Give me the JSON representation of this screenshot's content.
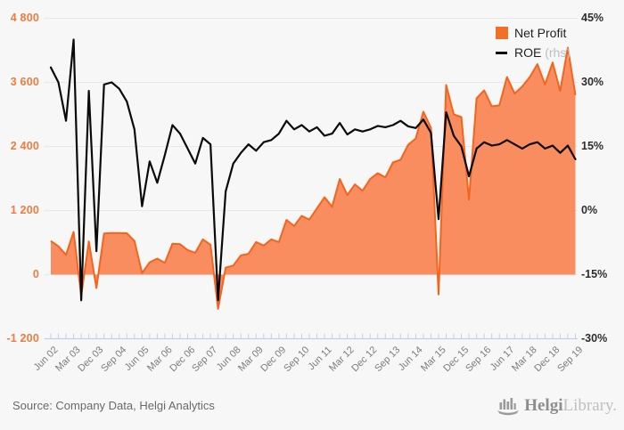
{
  "chart_data": {
    "type": "area",
    "title": "",
    "categories": [
      "Jun 02",
      "Sep 02",
      "Dec 02",
      "Mar 03",
      "Jun 03",
      "Sep 03",
      "Dec 03",
      "Mar 04",
      "Jun 04",
      "Sep 04",
      "Dec 04",
      "Mar 05",
      "Jun 05",
      "Sep 05",
      "Dec 05",
      "Mar 06",
      "Jun 06",
      "Sep 06",
      "Dec 06",
      "Mar 07",
      "Jun 07",
      "Sep 07",
      "Dec 07",
      "Mar 08",
      "Jun 08",
      "Sep 08",
      "Dec 08",
      "Mar 09",
      "Jun 09",
      "Sep 09",
      "Dec 09",
      "Mar 10",
      "Jun 10",
      "Sep 10",
      "Dec 10",
      "Mar 11",
      "Jun 11",
      "Sep 11",
      "Dec 11",
      "Mar 12",
      "Jun 12",
      "Sep 12",
      "Dec 12",
      "Mar 13",
      "Jun 13",
      "Sep 13",
      "Dec 13",
      "Mar 14",
      "Jun 14",
      "Sep 14",
      "Dec 14",
      "Mar 15",
      "Jun 15",
      "Sep 15",
      "Dec 15",
      "Mar 16",
      "Jun 16",
      "Sep 16",
      "Dec 16",
      "Mar 17",
      "Jun 17",
      "Sep 17",
      "Dec 17",
      "Mar 18",
      "Jun 18",
      "Sep 18",
      "Dec 18",
      "Mar 19",
      "Jun 19",
      "Sep 19"
    ],
    "x_label_every": 3,
    "series": [
      {
        "name": "Net Profit",
        "type": "area",
        "axis": "left",
        "values": [
          630,
          530,
          370,
          800,
          -400,
          620,
          -250,
          770,
          780,
          780,
          775,
          630,
          30,
          230,
          300,
          220,
          580,
          570,
          460,
          410,
          660,
          560,
          -640,
          130,
          170,
          360,
          390,
          610,
          545,
          660,
          610,
          1025,
          910,
          1100,
          1030,
          1240,
          1450,
          1270,
          1790,
          1490,
          1690,
          1570,
          1790,
          1900,
          1820,
          2100,
          2150,
          2430,
          2550,
          3050,
          2750,
          -370,
          3550,
          3000,
          2950,
          1400,
          3300,
          3450,
          3150,
          3170,
          3700,
          3390,
          3520,
          3700,
          3940,
          3560,
          3970,
          3440,
          4250,
          3360
        ]
      },
      {
        "name": "ROE",
        "type": "line",
        "axis": "right",
        "values": [
          33.5,
          30,
          21,
          40,
          -21,
          28,
          -9.5,
          29.5,
          30,
          28.5,
          25.5,
          19,
          1,
          11.5,
          6.5,
          13,
          20,
          18,
          14.5,
          11,
          17,
          15.5,
          -21,
          4.5,
          11,
          13.5,
          15.5,
          14,
          16,
          16.5,
          18,
          21,
          19,
          20,
          18.5,
          19.5,
          17.5,
          18,
          20.5,
          17.8,
          19,
          18.5,
          19,
          19.8,
          19.5,
          20,
          21,
          19.7,
          19.3,
          21.3,
          18.2,
          -2,
          23,
          17.5,
          15,
          8,
          14.5,
          16,
          15.2,
          15.5,
          16.5,
          15.5,
          14.5,
          15.5,
          16,
          14.5,
          15.2,
          13.5,
          15.2,
          12
        ]
      }
    ],
    "left_axis": {
      "min": -1200,
      "max": 4800,
      "tick_values": [
        4800,
        3600,
        2400,
        1200,
        0,
        -1200
      ],
      "tick_labels": [
        "4 800",
        "3 600",
        "2 400",
        "1 200",
        "0",
        "-1 200"
      ]
    },
    "right_axis": {
      "min": -30,
      "max": 45,
      "tick_values": [
        45,
        30,
        15,
        0,
        -15,
        -30
      ],
      "tick_labels": [
        "45%",
        "30%",
        "15%",
        "0%",
        "-15%",
        "-30%"
      ]
    },
    "grid": "horizontal",
    "legend_position": "top-right",
    "colors": {
      "area_fill": "#FA8D5F",
      "area_stroke": "#F3641D",
      "legend_swatch": "#F36F27",
      "roe_line": "#0A0A0A",
      "left_labels": "#EF7B3F",
      "right_labels": "#2D2D2D",
      "grid": "#E8E8E8",
      "axis_ticks": "#C4CFED",
      "background": "#F7F7F7"
    }
  },
  "legend": {
    "net_profit": "Net Profit",
    "roe": "ROE",
    "roe_suffix": "(rhs)"
  },
  "footer": {
    "source": "Source: Company Data, Helgi Analytics"
  },
  "logo": {
    "bold": "Helgi",
    "light": "Library."
  }
}
